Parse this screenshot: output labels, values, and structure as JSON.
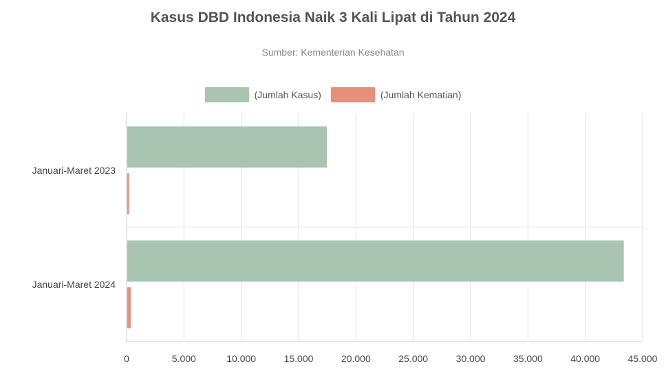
{
  "colors": {
    "cases": "#a9c4b1",
    "deaths": "#e6907a",
    "grid": "#e3e3e3",
    "axis": "#cfcfcf"
  },
  "chart_data": {
    "type": "bar",
    "orientation": "horizontal",
    "title": "Kasus DBD Indonesia Naik 3 Kali Lipat di Tahun 2024",
    "subtitle": "Sumber: Kementerian Kesehatan",
    "categories": [
      "Januari-Maret 2023",
      "Januari-Maret 2024"
    ],
    "series": [
      {
        "name": "(Jumlah Kasus)",
        "values": [
          17400,
          43300
        ]
      },
      {
        "name": "(Jumlah Kematian)",
        "values": [
          150,
          300
        ]
      }
    ],
    "xlim": [
      0,
      45000
    ],
    "xticks": [
      "0",
      "5.000",
      "10.000",
      "15.000",
      "20.000",
      "25.000",
      "30.000",
      "35.000",
      "40.000",
      "45.000"
    ],
    "grid": true,
    "legend_position": "top-center"
  }
}
